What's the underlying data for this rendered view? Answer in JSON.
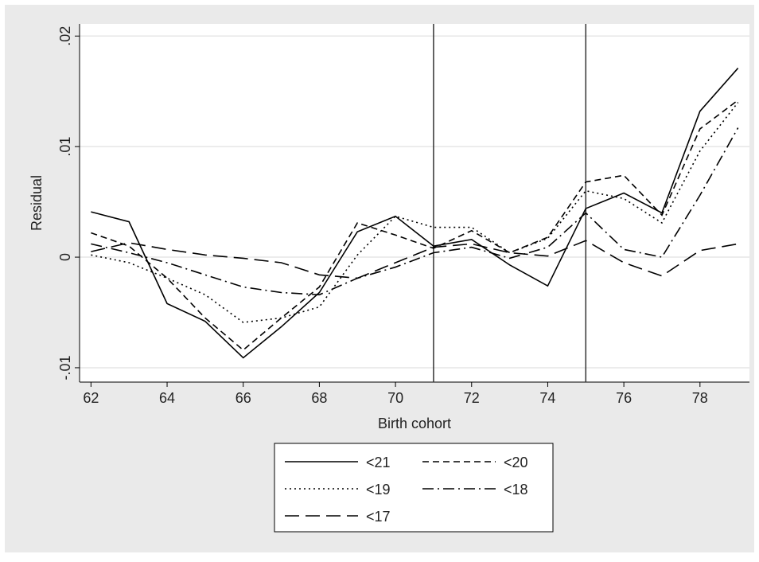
{
  "chart_data": {
    "type": "line",
    "x_label": "Birth cohort",
    "y_label": "Residual",
    "x": [
      62,
      63,
      64,
      65,
      66,
      67,
      68,
      69,
      70,
      71,
      72,
      73,
      74,
      75,
      76,
      77,
      78,
      79
    ],
    "series": [
      {
        "name": "<21",
        "color": "#000000",
        "dash": "solid",
        "values": [
          0.0041,
          0.0032,
          -0.0042,
          -0.0058,
          -0.0091,
          -0.0063,
          -0.0032,
          0.0023,
          0.0037,
          0.001,
          0.0016,
          -0.0007,
          -0.0026,
          0.0044,
          0.0058,
          0.004,
          0.0132,
          0.0171
        ]
      },
      {
        "name": "<20",
        "color": "#000000",
        "dash": "short",
        "values": [
          0.0022,
          0.001,
          -0.0019,
          -0.0055,
          -0.0084,
          -0.0055,
          -0.0027,
          0.0031,
          0.002,
          0.0008,
          0.0024,
          0.0004,
          0.0018,
          0.0068,
          0.0074,
          0.0038,
          0.0116,
          0.0142
        ]
      },
      {
        "name": "<19",
        "color": "#000000",
        "dash": "dot",
        "values": [
          0.0002,
          -0.0005,
          -0.0019,
          -0.0034,
          -0.0059,
          -0.0055,
          -0.0045,
          0.0002,
          0.0037,
          0.0027,
          0.0027,
          0.0004,
          0.0017,
          0.006,
          0.0053,
          0.0031,
          0.0096,
          0.014
        ]
      },
      {
        "name": "<18",
        "color": "#000000",
        "dash": "dashdot",
        "values": [
          0.0012,
          0.0004,
          -0.0005,
          -0.0016,
          -0.0027,
          -0.0032,
          -0.0034,
          -0.0019,
          -0.0009,
          0.0004,
          0.0009,
          -0.0001,
          0.0009,
          0.004,
          0.0007,
          0.0,
          0.0056,
          0.0117
        ]
      },
      {
        "name": "<17",
        "color": "#000000",
        "dash": "long",
        "values": [
          0.0005,
          0.0013,
          0.0007,
          0.0002,
          -0.0001,
          -0.0005,
          -0.0016,
          -0.0019,
          -0.0005,
          0.0009,
          0.0012,
          0.0004,
          0.0001,
          0.0015,
          -0.0005,
          -0.0017,
          0.0006,
          0.0012
        ]
      }
    ],
    "vlines": [
      71,
      75
    ],
    "xlim": [
      61.7,
      79.3
    ],
    "ylim": [
      -0.0113,
      0.0211
    ],
    "xticks": [
      62,
      64,
      66,
      68,
      70,
      72,
      74,
      76,
      78
    ],
    "yticks": [
      {
        "value": -0.01,
        "label": "-.01"
      },
      0,
      {
        "value": 0.01,
        "label": ".01"
      },
      {
        "value": 0.02,
        "label": ".02"
      }
    ],
    "grid": true
  }
}
